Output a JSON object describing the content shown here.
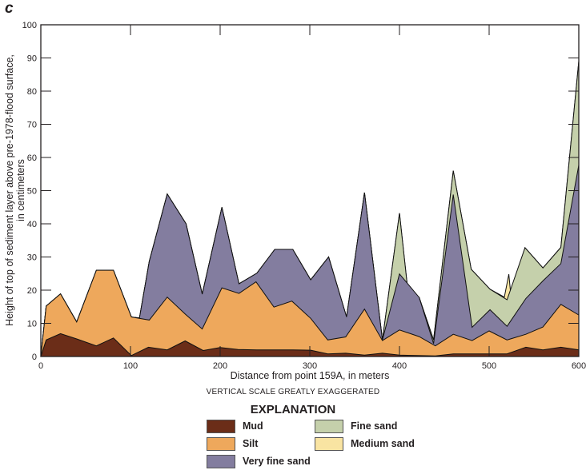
{
  "panel_label": "c",
  "note": "VERTICAL SCALE GREATLY EXAGGERATED",
  "legend_title": "EXPLANATION",
  "colors": {
    "mud": "#6b2d18",
    "silt": "#eea85c",
    "very_fine_sand": "#837d9f",
    "fine_sand": "#c5d0ab",
    "medium_sand": "#f9e4a2"
  },
  "chart_data": {
    "type": "area",
    "title": "",
    "xlabel": "Distance from point 159A, in meters",
    "ylabel_lines": [
      "Height of top of sediment layer above pre-1978-flood surface,",
      "in centimeters"
    ],
    "xlim": [
      0,
      600
    ],
    "ylim": [
      0,
      100
    ],
    "xticks": [
      0,
      100,
      200,
      300,
      400,
      500,
      600
    ],
    "yticks": [
      0,
      10,
      20,
      30,
      40,
      50,
      60,
      70,
      80,
      90,
      100
    ],
    "grid": false,
    "legend": "bottom",
    "note": "values are heights of the top of each layer (stacked)",
    "series": [
      {
        "name": "Mud",
        "key": "mud",
        "points": [
          [
            0,
            0
          ],
          [
            6,
            5
          ],
          [
            22,
            6.9
          ],
          [
            40,
            5.3
          ],
          [
            62,
            3.2
          ],
          [
            81,
            5.6
          ],
          [
            101,
            0.3
          ],
          [
            120,
            2.8
          ],
          [
            141,
            2
          ],
          [
            161,
            4.7
          ],
          [
            181,
            1.8
          ],
          [
            200,
            2.7
          ],
          [
            220,
            2.1
          ],
          [
            241,
            2
          ],
          [
            261,
            2
          ],
          [
            281,
            2
          ],
          [
            301,
            1.9
          ],
          [
            320,
            0.8
          ],
          [
            340,
            1
          ],
          [
            361,
            0.4
          ],
          [
            381,
            1
          ],
          [
            400,
            0.4
          ],
          [
            420,
            0.3
          ],
          [
            440,
            0.2
          ],
          [
            460,
            0.8
          ],
          [
            480,
            0.8
          ],
          [
            500,
            0.8
          ],
          [
            520,
            0.8
          ],
          [
            541,
            2.8
          ],
          [
            560,
            2
          ],
          [
            580,
            2.8
          ],
          [
            600,
            2
          ]
        ]
      },
      {
        "name": "Silt",
        "key": "silt",
        "points": [
          [
            0,
            0
          ],
          [
            6,
            15.2
          ],
          [
            22,
            18.9
          ],
          [
            40,
            10.4
          ],
          [
            62,
            26
          ],
          [
            81,
            26
          ],
          [
            101,
            11.9
          ],
          [
            121,
            11
          ],
          [
            141,
            17.9
          ],
          [
            161,
            12.8
          ],
          [
            180,
            8.3
          ],
          [
            202,
            20.7
          ],
          [
            221,
            19
          ],
          [
            240,
            22.5
          ],
          [
            260,
            14.9
          ],
          [
            280,
            16.7
          ],
          [
            301,
            11.5
          ],
          [
            320,
            5
          ],
          [
            340,
            5.9
          ],
          [
            361,
            14.3
          ],
          [
            381,
            4.8
          ],
          [
            400,
            8
          ],
          [
            422,
            6
          ],
          [
            440,
            3.2
          ],
          [
            460,
            6.7
          ],
          [
            481,
            4.8
          ],
          [
            500,
            7.7
          ],
          [
            520,
            5
          ],
          [
            541,
            6.7
          ],
          [
            560,
            8.9
          ],
          [
            580,
            15.7
          ],
          [
            600,
            12.5
          ]
        ]
      },
      {
        "name": "Very fine sand",
        "key": "very_fine_sand",
        "points": [
          [
            0,
            0
          ],
          [
            6,
            15.2
          ],
          [
            22,
            18.9
          ],
          [
            40,
            10.4
          ],
          [
            62,
            26
          ],
          [
            81,
            26
          ],
          [
            101,
            11.9
          ],
          [
            110,
            11.6
          ],
          [
            121,
            28.7
          ],
          [
            141,
            49
          ],
          [
            162,
            40
          ],
          [
            180,
            18.8
          ],
          [
            202,
            45
          ],
          [
            221,
            21.9
          ],
          [
            241,
            25.1
          ],
          [
            261,
            32.3
          ],
          [
            281,
            32.3
          ],
          [
            301,
            23.1
          ],
          [
            321,
            30
          ],
          [
            341,
            11.9
          ],
          [
            361,
            49.4
          ],
          [
            381,
            5
          ],
          [
            400,
            24.9
          ],
          [
            422,
            17.8
          ],
          [
            438,
            3.9
          ],
          [
            460,
            48.8
          ],
          [
            481,
            8.8
          ],
          [
            501,
            14.1
          ],
          [
            520,
            9.1
          ],
          [
            541,
            17.5
          ],
          [
            560,
            22.8
          ],
          [
            580,
            28
          ],
          [
            600,
            57.7
          ]
        ]
      },
      {
        "name": "Fine sand",
        "key": "fine_sand",
        "points": [
          [
            0,
            0
          ],
          [
            6,
            15.2
          ],
          [
            22,
            18.9
          ],
          [
            40,
            10.4
          ],
          [
            62,
            26
          ],
          [
            81,
            26
          ],
          [
            101,
            11.9
          ],
          [
            110,
            11.6
          ],
          [
            121,
            28.7
          ],
          [
            141,
            49
          ],
          [
            162,
            40
          ],
          [
            180,
            18.8
          ],
          [
            202,
            45
          ],
          [
            221,
            21.9
          ],
          [
            241,
            25.1
          ],
          [
            261,
            32.3
          ],
          [
            281,
            32.3
          ],
          [
            301,
            23.1
          ],
          [
            321,
            30
          ],
          [
            341,
            11.9
          ],
          [
            361,
            49.4
          ],
          [
            381,
            5
          ],
          [
            400,
            43.2
          ],
          [
            409,
            20.7
          ],
          [
            422,
            17.8
          ],
          [
            438,
            5
          ],
          [
            460,
            56
          ],
          [
            480,
            26.3
          ],
          [
            501,
            20.3
          ],
          [
            520,
            17.1
          ],
          [
            540,
            32.8
          ],
          [
            560,
            26.7
          ],
          [
            580,
            32.9
          ],
          [
            600,
            89
          ]
        ]
      },
      {
        "name": "Medium sand",
        "key": "medium_sand",
        "points": [
          [
            0,
            0
          ],
          [
            6,
            15.2
          ],
          [
            22,
            18.9
          ],
          [
            40,
            10.4
          ],
          [
            62,
            26
          ],
          [
            81,
            26
          ],
          [
            101,
            11.9
          ],
          [
            110,
            11.6
          ],
          [
            121,
            28.7
          ],
          [
            141,
            49
          ],
          [
            162,
            40
          ],
          [
            180,
            18.8
          ],
          [
            202,
            45
          ],
          [
            221,
            21.9
          ],
          [
            241,
            25.1
          ],
          [
            261,
            32.3
          ],
          [
            281,
            32.3
          ],
          [
            301,
            23.1
          ],
          [
            321,
            30
          ],
          [
            341,
            11.9
          ],
          [
            361,
            49.4
          ],
          [
            381,
            5
          ],
          [
            400,
            43.2
          ],
          [
            409,
            20.7
          ],
          [
            422,
            17.8
          ],
          [
            438,
            5
          ],
          [
            460,
            56
          ],
          [
            480,
            26.3
          ],
          [
            501,
            20.3
          ],
          [
            517,
            17.9
          ],
          [
            522,
            24.8
          ],
          [
            524,
            19
          ],
          [
            540,
            32.8
          ],
          [
            560,
            26.7
          ],
          [
            580,
            32.9
          ],
          [
            600,
            89
          ]
        ]
      }
    ]
  }
}
